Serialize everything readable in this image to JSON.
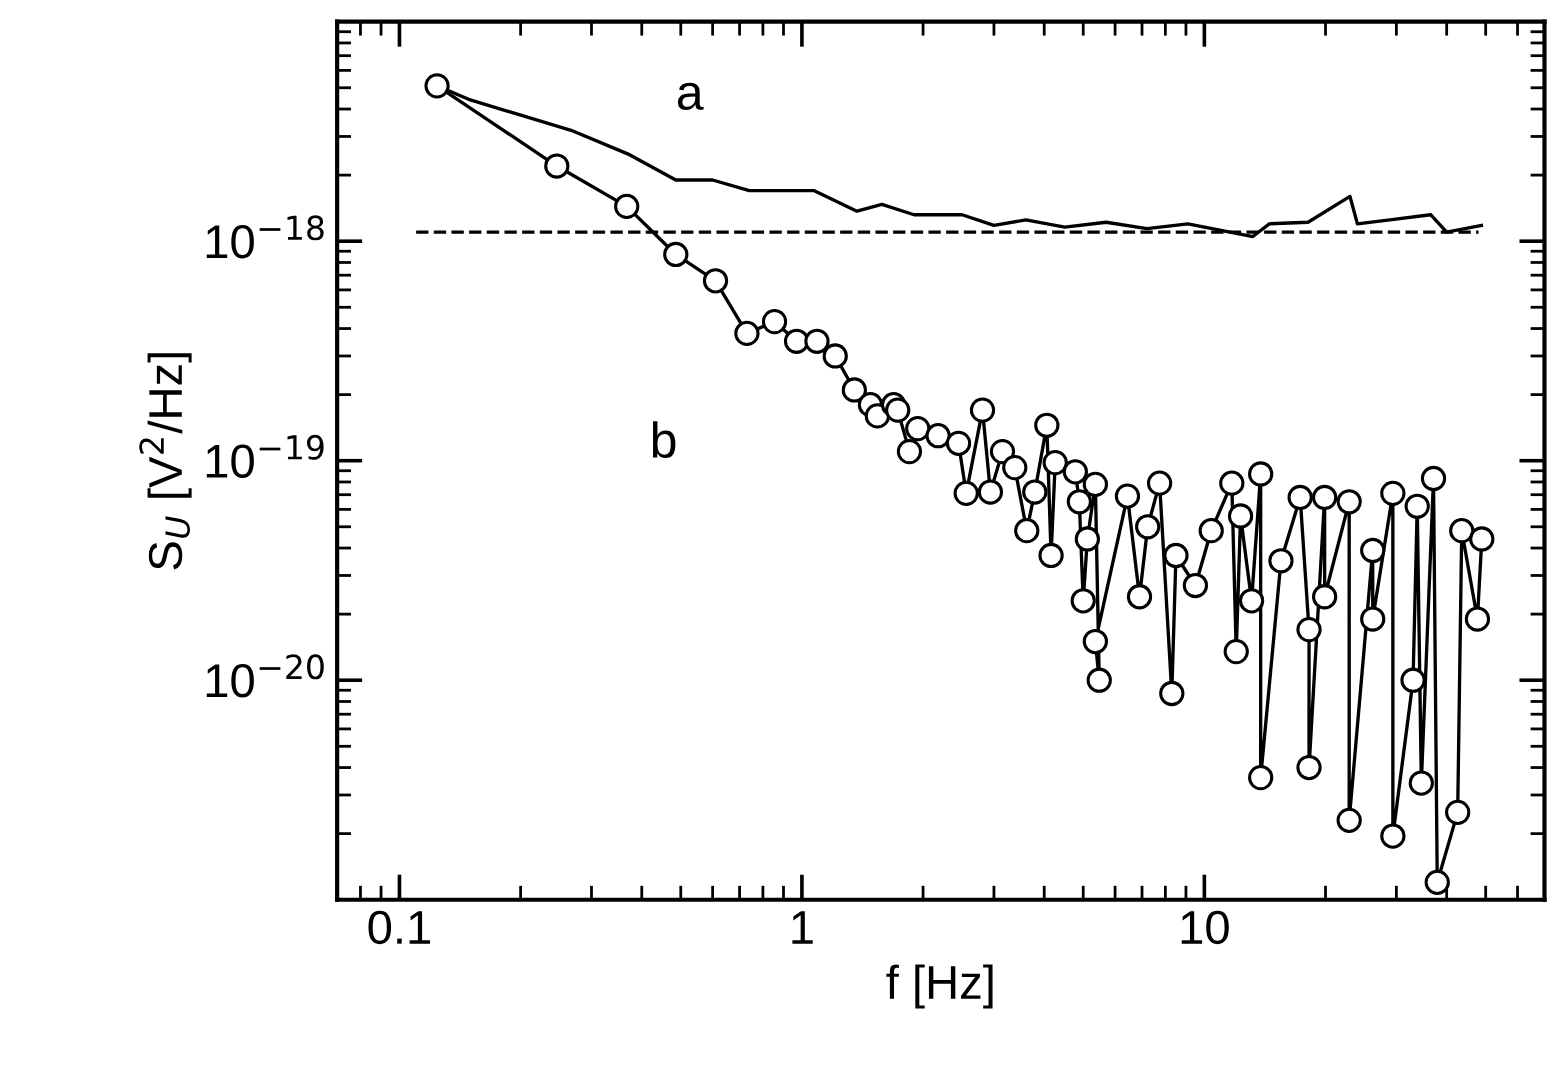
{
  "chart_data": {
    "type": "line",
    "xlabel": "f [Hz]",
    "ylabel": "S$_{U}$ [V$^{2}$/Hz]",
    "log": "xy",
    "grid": false,
    "xlim": [
      0.07,
      70
    ],
    "ylim": [
      1e-21,
      1e-17
    ],
    "xticks": [
      0.1,
      1,
      10
    ],
    "annotations": [
      "a",
      "b"
    ],
    "yticks": [
      {
        "value": 1e-18,
        "label": "10$^{−18}$"
      },
      {
        "value": 1e-19,
        "label": "10$^{−19}$"
      },
      {
        "value": 1e-20,
        "label": "10$^{−20}$"
      }
    ],
    "series": [
      {
        "color": "#000000",
        "marker": "none",
        "line_style": "solid",
        "x": [
          0.124,
          0.15,
          0.267,
          0.369,
          0.486,
          0.6,
          0.74,
          1.07,
          1.37,
          1.58,
          1.9,
          2.5,
          3.0,
          3.6,
          4.5,
          5.7,
          7.2,
          9.1,
          13.2,
          14.5,
          18.1,
          23,
          24,
          28.9,
          36.5,
          40,
          48.8
        ],
        "values": [
          5.1e-18,
          4.4e-18,
          3.2e-18,
          2.5e-18,
          1.9e-18,
          1.9e-18,
          1.7e-18,
          1.7e-18,
          1.37e-18,
          1.47e-18,
          1.32e-18,
          1.32e-18,
          1.18e-18,
          1.25e-18,
          1.16e-18,
          1.22e-18,
          1.14e-18,
          1.2e-18,
          1.05e-18,
          1.2e-18,
          1.22e-18,
          1.6e-18,
          1.2e-18,
          1.25e-18,
          1.32e-18,
          1.1e-18,
          1.18e-18
        ]
      },
      {
        "color": "#000000",
        "marker": "none",
        "line_style": "dashed",
        "x": [
          0.11,
          48
        ],
        "values": [
          1.1e-18,
          1.1e-18
        ]
      },
      {
        "color": "#000000",
        "marker": "circle",
        "line_style": "solid",
        "x": [
          0.124,
          0.246,
          0.367,
          0.486,
          0.61,
          0.73,
          0.855,
          0.97,
          1.09,
          1.21,
          1.35,
          1.48,
          1.54,
          1.69,
          1.73,
          1.85,
          1.94,
          2.18,
          2.45,
          2.56,
          2.81,
          2.94,
          3.15,
          3.38,
          3.62,
          3.79,
          4.06,
          4.16,
          4.26,
          4.78,
          4.89,
          5.0,
          5.12,
          5.36,
          5.48,
          5.36,
          6.44,
          6.9,
          7.23,
          7.74,
          8.3,
          8.5,
          9.5,
          10.4,
          11.7,
          12.0,
          12.3,
          13.1,
          13.8,
          13.8,
          15.5,
          17.3,
          18.2,
          18.2,
          19.9,
          19.9,
          22.9,
          22.9,
          26.2,
          26.2,
          29.4,
          29.4,
          33,
          33.8,
          34.6,
          37.1,
          37.9,
          42.6,
          43.6,
          47.7,
          48.9
        ],
        "values": [
          5.1e-18,
          2.2e-18,
          1.44e-18,
          8.7e-19,
          6.6e-19,
          3.8e-19,
          4.3e-19,
          3.5e-19,
          3.5e-19,
          3e-19,
          2.1e-19,
          1.8e-19,
          1.6e-19,
          1.8e-19,
          1.7e-19,
          1.1e-19,
          1.4e-19,
          1.3e-19,
          1.2e-19,
          7.1e-20,
          1.7e-19,
          7.2e-20,
          1.1e-19,
          9.3e-20,
          4.8e-20,
          7.2e-20,
          1.45e-19,
          3.7e-20,
          9.8e-20,
          8.9e-20,
          6.5e-20,
          2.3e-20,
          4.4e-20,
          7.8e-20,
          1e-20,
          1.5e-20,
          6.9e-20,
          2.4e-20,
          5e-20,
          7.9e-20,
          8.7e-21,
          3.7e-20,
          2.7e-20,
          4.8e-20,
          7.9e-20,
          1.35e-20,
          5.6e-20,
          2.3e-20,
          8.7e-20,
          3.6e-21,
          3.5e-20,
          6.8e-20,
          1.7e-20,
          4e-21,
          6.8e-20,
          2.4e-20,
          6.5e-20,
          2.3e-21,
          3.9e-20,
          1.9e-20,
          7.1e-20,
          1.95e-21,
          1e-20,
          6.2e-20,
          3.4e-21,
          8.3e-20,
          1.2e-21,
          2.5e-21,
          4.8e-20,
          1.9e-20,
          4.4e-20
        ]
      }
    ]
  }
}
